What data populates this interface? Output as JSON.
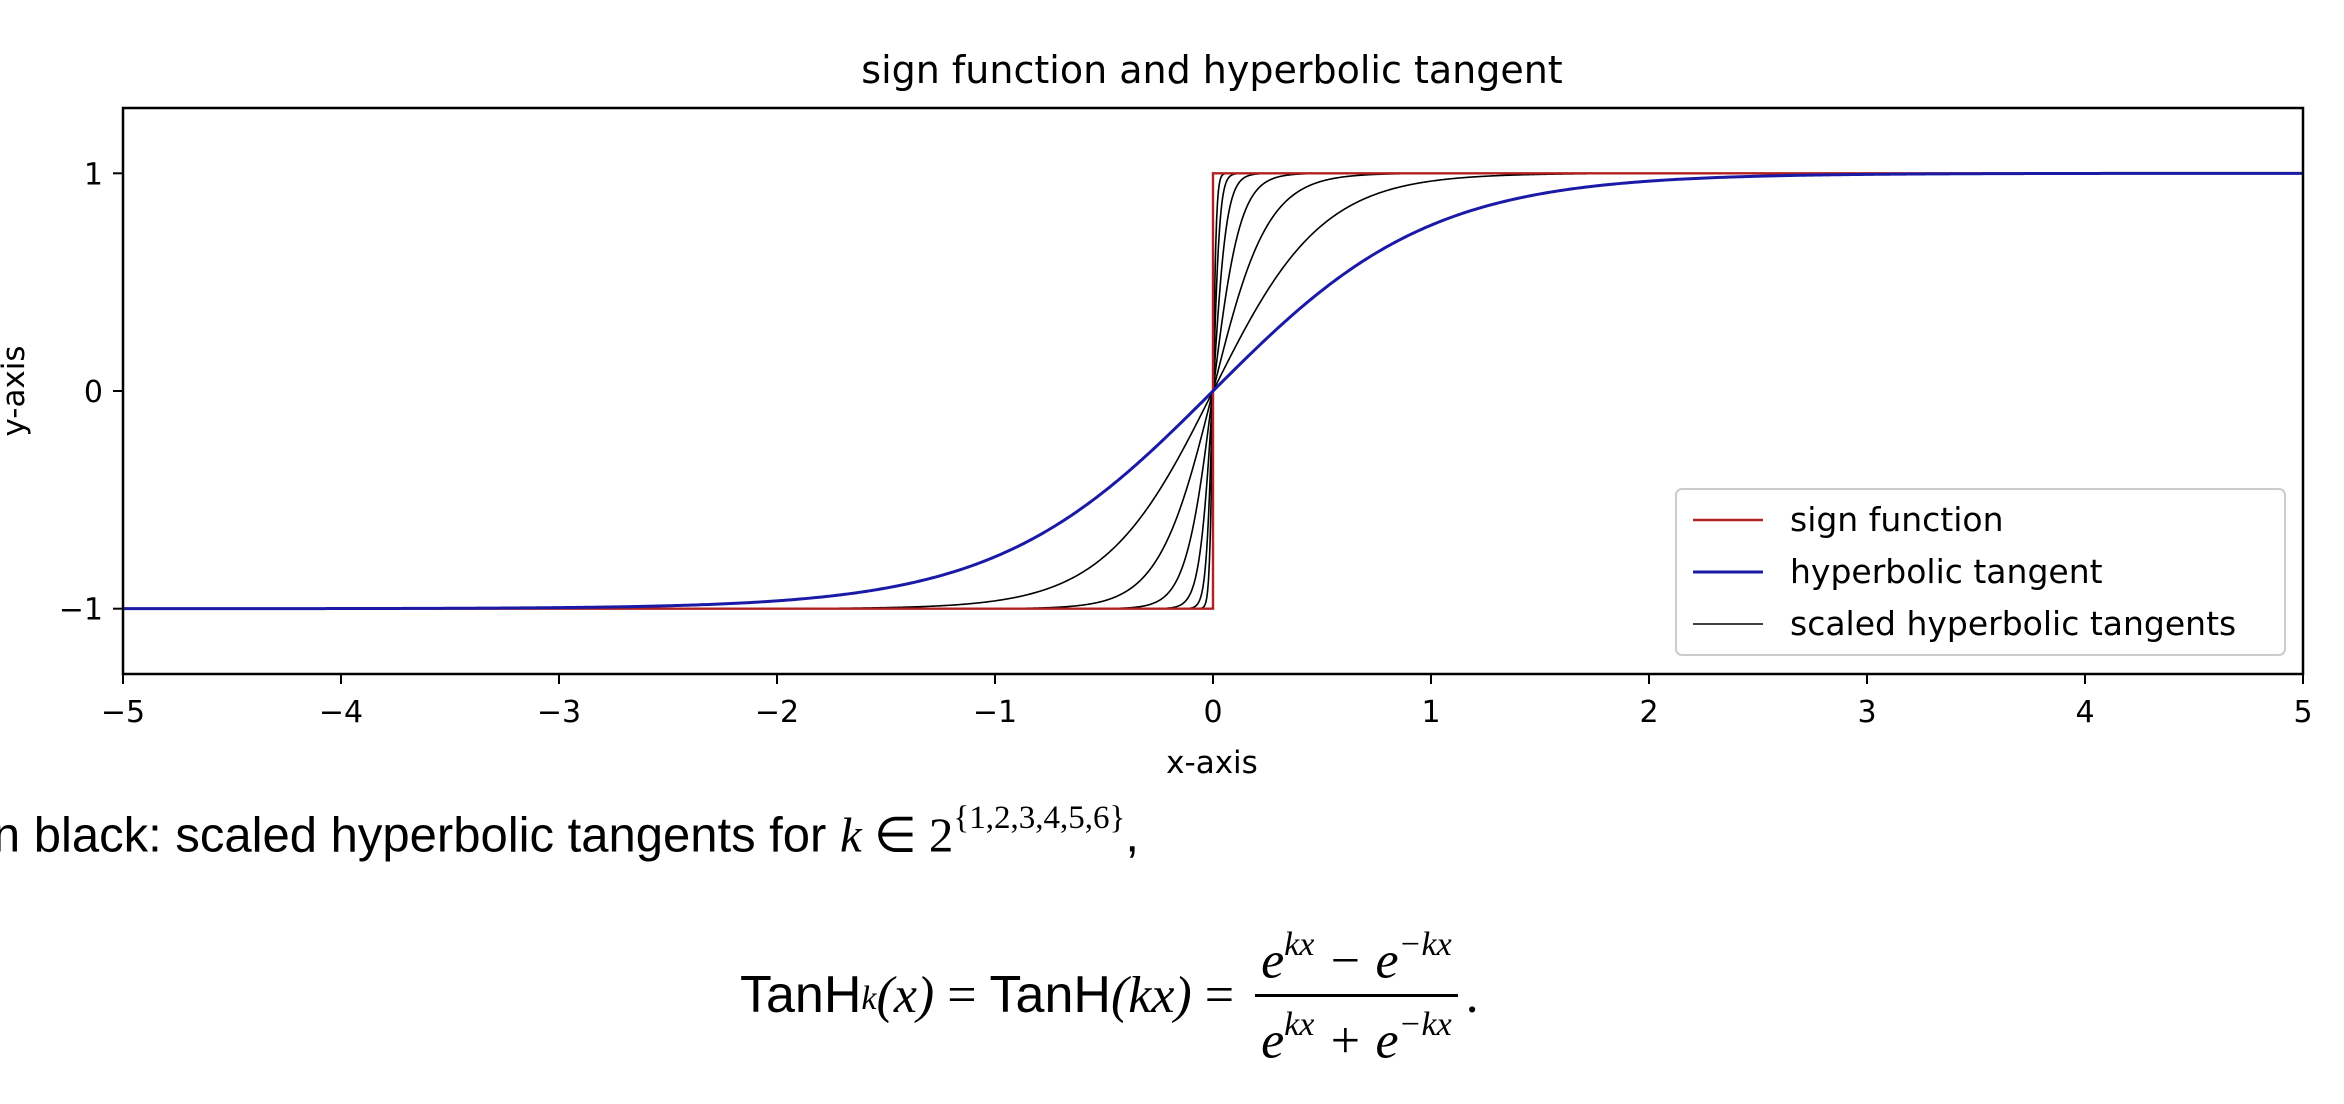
{
  "chart_data": {
    "type": "line",
    "title": "sign function and hyperbolic tangent",
    "xlabel": "x-axis",
    "ylabel": "y-axis",
    "xlim": [
      -5,
      5
    ],
    "ylim": [
      -1.3,
      1.3
    ],
    "x_ticks": [
      -5,
      -4,
      -3,
      -2,
      -1,
      0,
      1,
      2,
      3,
      4,
      5
    ],
    "x_tick_labels": [
      "−5",
      "−4",
      "−3",
      "−2",
      "−1",
      "0",
      "1",
      "2",
      "3",
      "4",
      "5"
    ],
    "y_ticks": [
      -1,
      0,
      1
    ],
    "y_tick_labels": [
      "−1",
      "0",
      "1"
    ],
    "grid": false,
    "legend_position": "lower-right",
    "series": [
      {
        "name": "sign function",
        "function": "sign(x)",
        "color": "#b22222"
      },
      {
        "name": "hyperbolic tangent",
        "function": "tanh(x)",
        "color": "#1a1aa6"
      },
      {
        "name": "scaled hyperbolic tangents",
        "function": "tanh(k*x)",
        "k_values": [
          2,
          4,
          8,
          16,
          32,
          64
        ],
        "color": "#000000"
      }
    ]
  },
  "caption": {
    "prefix": "in black: scaled hyperbolic tangents for ",
    "k": "k",
    "in": " ∈ 2",
    "exponent": "{1,2,3,4,5,6}",
    "suffix": ","
  },
  "formula": {
    "lhs_name": "TanH",
    "lhs_sub": "k",
    "lhs_arg": "(x)",
    "eq1": " = ",
    "mid_name": "TanH",
    "mid_arg": "(kx)",
    "eq2": " = ",
    "num_a": "e",
    "num_a_exp": "kx",
    "num_op": " − e",
    "num_b_exp": "−kx",
    "den_a": "e",
    "den_a_exp": "kx",
    "den_op": " + e",
    "den_b_exp": "−kx",
    "end": "."
  }
}
